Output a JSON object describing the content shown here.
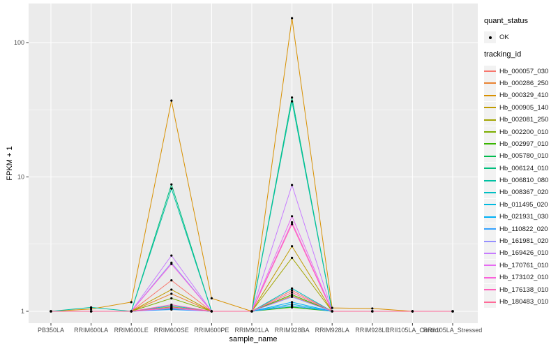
{
  "chart_data": {
    "type": "line",
    "title": "",
    "xlabel": "sample_name",
    "ylabel": "FPKM + 1",
    "y_scale": "log10",
    "ylim": [
      0.82,
      195
    ],
    "y_ticks": [
      1,
      10,
      100
    ],
    "y_minor_gridlines": [
      3.162,
      31.62
    ],
    "grid": "on",
    "panel_bg": "#EBEBEB",
    "gridline_color": "#FFFFFF",
    "point_color": "#000000",
    "legend_position": "right",
    "legend": {
      "quant_status": {
        "title": "quant_status",
        "items": [
          {
            "label": "OK",
            "marker": "black-point"
          }
        ]
      },
      "tracking_id": {
        "title": "tracking_id"
      }
    },
    "x_categories": [
      "PB350LA",
      "RRIM600LA",
      "RRIM600LE",
      "RRIM600SE",
      "RRIM600PE",
      "RRIM901LA",
      "RRIM928BA",
      "RRIM928LA",
      "RRIM928LE",
      "RRII105LA_Control",
      "RRII105LA_Stressed"
    ],
    "series": [
      {
        "name": "Hb_000057_030",
        "color": "#F8766D",
        "values": [
          1,
          1,
          1,
          1.7,
          1,
          1,
          1.43,
          1,
          1,
          1,
          1
        ]
      },
      {
        "name": "Hb_000286_250",
        "color": "#EA8331",
        "values": [
          1,
          1,
          1,
          1.35,
          1,
          1,
          1.3,
          1,
          1,
          1,
          1
        ]
      },
      {
        "name": "Hb_000329_410",
        "color": "#D89000",
        "values": [
          1,
          1.04,
          1.17,
          37,
          1.25,
          1,
          152,
          1.06,
          1.05,
          1,
          1
        ]
      },
      {
        "name": "Hb_000905_140",
        "color": "#C09B00",
        "values": [
          1,
          1,
          1,
          1.45,
          1,
          1,
          3.05,
          1,
          1,
          1,
          1
        ]
      },
      {
        "name": "Hb_002081_250",
        "color": "#A3A500",
        "values": [
          1,
          1,
          1,
          1.08,
          1,
          1,
          2.5,
          1,
          1,
          1,
          1
        ]
      },
      {
        "name": "Hb_002200_010",
        "color": "#7CAE00",
        "values": [
          1,
          1,
          1,
          1.25,
          1,
          1,
          1.07,
          1,
          1,
          1,
          1
        ]
      },
      {
        "name": "Hb_002997_010",
        "color": "#39B600",
        "values": [
          1,
          1,
          1,
          1.05,
          1,
          1,
          1.33,
          1,
          1,
          1,
          1
        ]
      },
      {
        "name": "Hb_005780_010",
        "color": "#00BB4E",
        "values": [
          1,
          1,
          1,
          1.04,
          1,
          1,
          1.08,
          1,
          1,
          1,
          1
        ]
      },
      {
        "name": "Hb_006124_010",
        "color": "#00BF7D",
        "values": [
          1,
          1,
          1,
          8.8,
          1,
          1,
          39,
          1,
          1,
          1,
          1
        ]
      },
      {
        "name": "Hb_006810_080",
        "color": "#00C1A3",
        "values": [
          1,
          1.07,
          1,
          8.2,
          1,
          1,
          36.5,
          1,
          1,
          1,
          1
        ]
      },
      {
        "name": "Hb_008367_020",
        "color": "#00BFC4",
        "values": [
          1,
          1,
          1,
          1.1,
          1,
          1,
          1.48,
          1,
          1,
          1,
          1
        ]
      },
      {
        "name": "Hb_011495_020",
        "color": "#00BAE0",
        "values": [
          1,
          1,
          1,
          1.05,
          1,
          1,
          1.13,
          1,
          1,
          1,
          1
        ]
      },
      {
        "name": "Hb_021931_030",
        "color": "#00B0F6",
        "values": [
          1,
          1,
          1,
          1.06,
          1,
          1,
          1.17,
          1,
          1,
          1,
          1
        ]
      },
      {
        "name": "Hb_110822_020",
        "color": "#35A2FF",
        "values": [
          1,
          1,
          1,
          1.03,
          1,
          1,
          1.1,
          1,
          1,
          1,
          1
        ]
      },
      {
        "name": "Hb_161981_020",
        "color": "#9590FF",
        "values": [
          1,
          1,
          1,
          2.3,
          1,
          1,
          1.28,
          1,
          1,
          1,
          1
        ]
      },
      {
        "name": "Hb_169426_010",
        "color": "#C77CFF",
        "values": [
          1,
          1,
          1,
          2.6,
          1,
          1,
          8.7,
          1,
          1,
          1,
          1
        ]
      },
      {
        "name": "Hb_170761_010",
        "color": "#E76BF3",
        "values": [
          1,
          1,
          1,
          1.05,
          1,
          1,
          5.1,
          1,
          1,
          1,
          1
        ]
      },
      {
        "name": "Hb_173102_010",
        "color": "#FA62DB",
        "values": [
          1,
          1,
          1,
          2.25,
          1,
          1,
          4.6,
          1,
          1,
          1,
          1
        ]
      },
      {
        "name": "Hb_176138_010",
        "color": "#FF62BC",
        "values": [
          1,
          1,
          1,
          1.12,
          1,
          1,
          4.45,
          1,
          1,
          1,
          1
        ]
      },
      {
        "name": "Hb_180483_010",
        "color": "#FF6A98",
        "values": [
          1,
          1,
          1,
          1.07,
          1,
          1,
          1.38,
          1,
          1,
          1,
          1
        ]
      }
    ]
  }
}
